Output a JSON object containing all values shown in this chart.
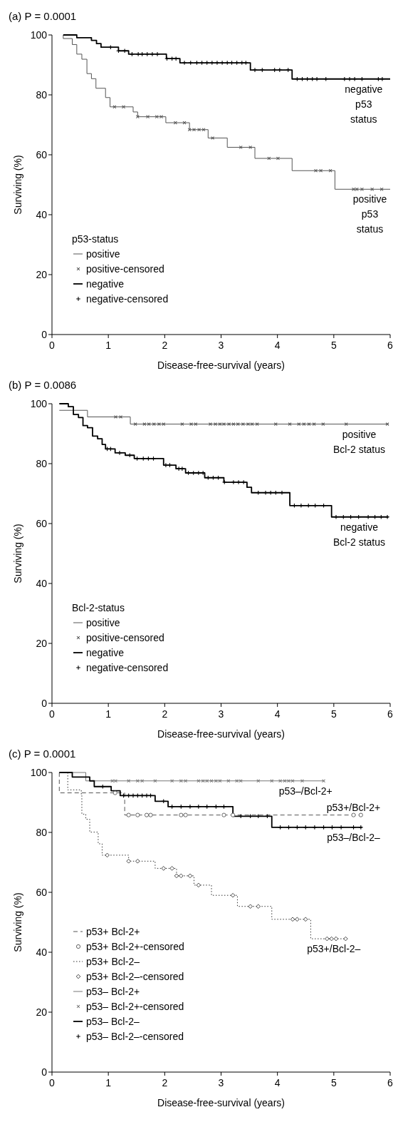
{
  "chart_data": [
    {
      "type": "step",
      "title": "(a) P = 0.0001",
      "xlabel": "Disease-free-survival (years)",
      "ylabel": "Surviving (%)",
      "legend_title": "p53-status",
      "legend": "bottom left",
      "xlim": [
        0,
        6
      ],
      "ylim": [
        0,
        100
      ],
      "xticks": [
        0,
        1,
        2,
        3,
        4,
        5,
        6
      ],
      "yticks": [
        0,
        20,
        40,
        60,
        80,
        100
      ],
      "annotations": [
        {
          "text": "negative\np53\nstatus",
          "x": 5.53,
          "y": 85.3
        },
        {
          "text": "positive\np53\nstatus",
          "x": 5.64,
          "y": 48.5
        }
      ],
      "series": [
        {
          "name": "positive",
          "color": "#555555",
          "line_style": "solid",
          "x": [
            0.2,
            0.2,
            0.36,
            0.44,
            0.53,
            0.62,
            0.7,
            0.78,
            0.95,
            1.03,
            1.44,
            1.52,
            2.02,
            2.44,
            2.77,
            3.11,
            3.6,
            4.26,
            5.02,
            6.0
          ],
          "values": [
            100,
            98.8,
            96.8,
            93.6,
            91.9,
            87.1,
            85.4,
            82.2,
            79.1,
            76.0,
            74.3,
            72.7,
            70.7,
            68.4,
            65.6,
            62.5,
            58.8,
            54.7,
            48.5,
            48.5
          ]
        },
        {
          "name": "positive-censored",
          "type": "scatter",
          "color": "#555555",
          "x": [
            1.11,
            1.27,
            1.52,
            1.7,
            1.86,
            1.94,
            2.19,
            2.35,
            2.44,
            2.52,
            2.61,
            2.69,
            2.85,
            3.35,
            3.52,
            3.85,
            4.01,
            4.68,
            4.77,
            4.94,
            5.35,
            5.41,
            5.5,
            5.68,
            5.85
          ],
          "values": [
            76.0,
            76.0,
            72.7,
            72.7,
            72.7,
            72.7,
            70.7,
            70.7,
            68.4,
            68.4,
            68.4,
            68.4,
            65.6,
            62.5,
            62.5,
            58.8,
            58.8,
            54.7,
            54.7,
            54.7,
            48.5,
            48.5,
            48.5,
            48.5,
            48.5
          ]
        },
        {
          "name": "negative",
          "color": "#000000",
          "line_style": "solid",
          "x": [
            0.2,
            0.44,
            0.7,
            0.79,
            0.87,
            1.18,
            1.36,
            2.03,
            2.27,
            3.52,
            4.26,
            6.0
          ],
          "values": [
            100,
            99.1,
            98.2,
            97.1,
            95.9,
            94.7,
            93.6,
            92.1,
            90.7,
            88.3,
            85.3,
            85.3
          ]
        },
        {
          "name": "negative-censored",
          "type": "scatter",
          "marker": "cross",
          "color": "#000000",
          "x": [
            1.04,
            1.18,
            1.29,
            1.42,
            1.53,
            1.6,
            1.69,
            1.78,
            1.87,
            2.04,
            2.13,
            2.2,
            2.35,
            2.46,
            2.57,
            2.66,
            2.75,
            2.84,
            2.93,
            3.02,
            3.11,
            3.19,
            3.28,
            3.37,
            3.44,
            3.6,
            3.73,
            3.95,
            4.04,
            4.19,
            4.35,
            4.44,
            4.53,
            4.62,
            4.7,
            4.86,
            5.19,
            5.28,
            5.37,
            5.5,
            5.79,
            5.86
          ],
          "values": [
            95.9,
            94.7,
            94.7,
            93.6,
            93.6,
            93.6,
            93.6,
            93.6,
            93.6,
            92.1,
            92.1,
            92.1,
            90.7,
            90.7,
            90.7,
            90.7,
            90.7,
            90.7,
            90.7,
            90.7,
            90.7,
            90.7,
            90.7,
            90.7,
            90.7,
            88.3,
            88.3,
            88.3,
            88.3,
            88.3,
            85.3,
            85.3,
            85.3,
            85.3,
            85.3,
            85.3,
            85.3,
            85.3,
            85.3,
            85.3,
            85.3,
            85.3
          ]
        }
      ]
    },
    {
      "type": "step",
      "title": "(b) P = 0.0086",
      "xlabel": "Disease-free-survival (years)",
      "ylabel": "Surviving (%)",
      "legend_title": "Bcl-2-status",
      "legend": "bottom left",
      "xlim": [
        0,
        6
      ],
      "ylim": [
        0,
        100
      ],
      "xticks": [
        0,
        1,
        2,
        3,
        4,
        5,
        6
      ],
      "yticks": [
        0,
        20,
        40,
        60,
        80,
        100
      ],
      "annotations": [
        {
          "text": "positive\nBcl-2 status",
          "x": 5.45,
          "y": 93.2
        },
        {
          "text": "negative\nBcl-2 status",
          "x": 5.45,
          "y": 62.2
        }
      ],
      "series": [
        {
          "name": "positive",
          "color": "#555555",
          "line_style": "solid",
          "x": [
            0.13,
            0.63,
            1.39,
            5.97
          ],
          "values": [
            97.8,
            95.6,
            93.2,
            93.2
          ]
        },
        {
          "name": "positive-censored",
          "type": "scatter",
          "color": "#555555",
          "x": [
            1.13,
            1.22,
            1.48,
            1.64,
            1.72,
            1.81,
            1.9,
            1.98,
            2.31,
            2.47,
            2.55,
            2.81,
            2.9,
            2.98,
            3.05,
            3.14,
            3.22,
            3.3,
            3.39,
            3.48,
            3.55,
            3.64,
            3.97,
            4.22,
            4.38,
            4.47,
            4.56,
            4.65,
            4.81,
            5.22,
            5.95
          ],
          "values": [
            95.6,
            95.6,
            93.2,
            93.2,
            93.2,
            93.2,
            93.2,
            93.2,
            93.2,
            93.2,
            93.2,
            93.2,
            93.2,
            93.2,
            93.2,
            93.2,
            93.2,
            93.2,
            93.2,
            93.2,
            93.2,
            93.2,
            93.2,
            93.2,
            93.2,
            93.2,
            93.2,
            93.2,
            93.2,
            93.2,
            93.2
          ]
        },
        {
          "name": "negative",
          "color": "#000000",
          "line_style": "solid",
          "x": [
            0.13,
            0.29,
            0.38,
            0.47,
            0.55,
            0.63,
            0.72,
            0.81,
            0.89,
            0.95,
            1.12,
            1.3,
            1.46,
            1.98,
            2.2,
            2.37,
            2.71,
            3.05,
            3.46,
            3.54,
            4.22,
            4.96,
            5.97
          ],
          "values": [
            100,
            99.0,
            96.4,
            95.4,
            92.7,
            92.0,
            89.2,
            88.3,
            86.4,
            84.9,
            83.6,
            82.8,
            81.7,
            79.5,
            78.3,
            76.9,
            75.3,
            73.8,
            72.1,
            70.3,
            66.0,
            62.2,
            62.2
          ]
        },
        {
          "name": "negative-censored",
          "type": "scatter",
          "marker": "cross",
          "color": "#000000",
          "x": [
            0.98,
            1.04,
            1.2,
            1.38,
            1.51,
            1.62,
            1.71,
            1.8,
            2.02,
            2.09,
            2.25,
            2.31,
            2.42,
            2.51,
            2.6,
            2.68,
            2.77,
            2.86,
            2.95,
            3.06,
            3.22,
            3.31,
            3.4,
            3.66,
            3.79,
            3.88,
            3.97,
            4.08,
            4.3,
            4.42,
            4.55,
            4.67,
            4.82,
            5.04,
            5.17,
            5.3,
            5.44,
            5.61,
            5.73,
            5.84,
            5.95
          ],
          "values": [
            84.9,
            84.9,
            83.6,
            82.8,
            81.7,
            81.7,
            81.7,
            81.7,
            79.5,
            79.5,
            78.3,
            78.3,
            76.9,
            76.9,
            76.9,
            76.9,
            75.3,
            75.3,
            75.3,
            73.8,
            73.8,
            73.8,
            73.8,
            70.3,
            70.3,
            70.3,
            70.3,
            70.3,
            66.0,
            66.0,
            66.0,
            66.0,
            66.0,
            62.2,
            62.2,
            62.2,
            62.2,
            62.2,
            62.2,
            62.2,
            62.2
          ]
        }
      ]
    },
    {
      "type": "step",
      "title": "(c) P = 0.0001",
      "xlabel": "Disease-free-survival (years)",
      "ylabel": "Surviving (%)",
      "legend": "bottom left",
      "xlim": [
        0,
        6
      ],
      "ylim": [
        0,
        100
      ],
      "xticks": [
        0,
        1,
        2,
        3,
        4,
        5,
        6
      ],
      "yticks": [
        0,
        20,
        40,
        60,
        80,
        100
      ],
      "annotations": [
        {
          "text": "p53–/Bcl-2+",
          "x": 4.5,
          "y": 97.2
        },
        {
          "text": "p53+/Bcl-2+",
          "x": 5.35,
          "y": 85.8
        },
        {
          "text": "p53–/Bcl-2–",
          "x": 5.35,
          "y": 81.7
        },
        {
          "text": "p53+/Bcl-2–",
          "x": 5.0,
          "y": 44.5
        }
      ],
      "series": [
        {
          "name": "p53+ Bcl-2+",
          "color": "#555555",
          "line_style": "dashed",
          "x": [
            0.13,
            0.13,
            1.29,
            5.5
          ],
          "values": [
            100,
            93.2,
            85.8,
            85.8
          ]
        },
        {
          "name": "p53+ Bcl-2+-censored",
          "type": "scatter",
          "marker": "circle",
          "color": "#555555",
          "x": [
            1.12,
            1.36,
            1.52,
            1.68,
            1.75,
            2.29,
            2.37,
            3.05,
            3.21,
            5.35,
            5.48
          ],
          "values": [
            93.2,
            85.8,
            85.8,
            85.8,
            85.8,
            85.8,
            85.8,
            85.8,
            85.8,
            85.8,
            85.8
          ]
        },
        {
          "name": "p53+ Bcl-2–",
          "color": "#333333",
          "line_style": "dotted",
          "x": [
            0.28,
            0.28,
            0.52,
            0.53,
            0.6,
            0.67,
            0.82,
            0.89,
            1.36,
            1.83,
            2.21,
            2.52,
            2.83,
            3.29,
            3.9,
            4.59,
            5.22
          ],
          "values": [
            100,
            94.2,
            92.3,
            86.1,
            84.4,
            80.1,
            76.2,
            72.4,
            70.4,
            68.0,
            65.5,
            62.4,
            59.0,
            55.3,
            51.0,
            44.5,
            44.5
          ]
        },
        {
          "name": "p53+ Bcl-2–-censored",
          "type": "scatter",
          "marker": "diamond",
          "color": "#333333",
          "x": [
            0.98,
            1.36,
            1.52,
            1.98,
            2.13,
            2.21,
            2.29,
            2.45,
            2.6,
            3.21,
            3.52,
            3.66,
            4.27,
            4.35,
            4.5,
            4.88,
            4.96,
            5.04,
            5.21
          ],
          "values": [
            72.4,
            70.4,
            70.4,
            68.0,
            68.0,
            65.5,
            65.5,
            65.5,
            62.4,
            59.0,
            55.3,
            55.3,
            51.0,
            51.0,
            51.0,
            44.5,
            44.5,
            44.5,
            44.5
          ]
        },
        {
          "name": "p53– Bcl-2+",
          "color": "#777777",
          "line_style": "solid",
          "x": [
            0.13,
            0.6,
            4.82
          ],
          "values": [
            100,
            97.2,
            97.2
          ]
        },
        {
          "name": "p53– Bcl-2+-censored",
          "type": "scatter",
          "color": "#777777",
          "x": [
            1.07,
            1.13,
            1.36,
            1.52,
            1.6,
            1.83,
            2.13,
            2.29,
            2.37,
            2.6,
            2.68,
            2.75,
            2.83,
            2.91,
            2.98,
            3.13,
            3.28,
            3.35,
            3.66,
            3.9,
            4.05,
            4.13,
            4.2,
            4.27,
            4.44,
            4.82
          ],
          "values": [
            97.2,
            97.2,
            97.2,
            97.2,
            97.2,
            97.2,
            97.2,
            97.2,
            97.2,
            97.2,
            97.2,
            97.2,
            97.2,
            97.2,
            97.2,
            97.2,
            97.2,
            97.2,
            97.2,
            97.2,
            97.2,
            97.2,
            97.2,
            97.2,
            97.2,
            97.2
          ]
        },
        {
          "name": "p53– Bcl-2–",
          "color": "#000000",
          "line_style": "solid",
          "x": [
            0.13,
            0.36,
            0.67,
            0.75,
            1.05,
            1.21,
            1.83,
            2.06,
            3.21,
            3.9,
            5.5
          ],
          "values": [
            100,
            98.5,
            97.2,
            95.3,
            93.9,
            92.3,
            90.4,
            88.6,
            85.4,
            81.7,
            81.7
          ]
        },
        {
          "name": "p53– Bcl-2–-censored",
          "type": "scatter",
          "marker": "cross",
          "color": "#000000",
          "x": [
            0.9,
            1.27,
            1.36,
            1.44,
            1.52,
            1.6,
            1.68,
            1.75,
            1.98,
            2.13,
            2.29,
            2.45,
            2.6,
            2.75,
            2.91,
            3.05,
            3.35,
            3.52,
            3.66,
            3.82,
            4.05,
            4.2,
            4.35,
            4.5,
            4.66,
            4.82,
            4.97,
            5.13,
            5.35,
            5.48
          ],
          "values": [
            95.3,
            92.3,
            92.3,
            92.3,
            92.3,
            92.3,
            92.3,
            92.3,
            90.4,
            88.6,
            88.6,
            88.6,
            88.6,
            88.6,
            88.6,
            88.6,
            85.4,
            85.4,
            85.4,
            85.4,
            81.7,
            81.7,
            81.7,
            81.7,
            81.7,
            81.7,
            81.7,
            81.7,
            81.7,
            81.7
          ]
        }
      ]
    }
  ]
}
